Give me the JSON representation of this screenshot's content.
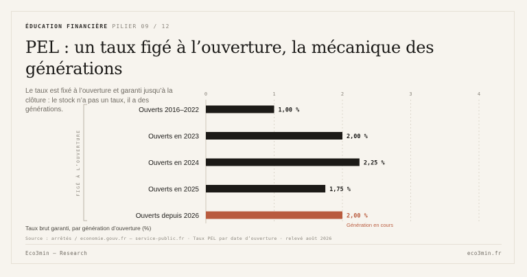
{
  "header": {
    "kicker": "ÉDUCATION FINANCIÈRE",
    "pillar": "PILIER 09 / 12",
    "title": "PEL : un taux figé à l’ouverture, la mécanique des générations",
    "subtitle": "Le taux est fixé à l’ouverture et garanti jusqu’à la clôture : le stock n’a pas un taux, il a des générations."
  },
  "chart_data": {
    "type": "bar",
    "orientation": "horizontal",
    "categories": [
      "Ouverts 2016–2022",
      "Ouverts en 2023",
      "Ouverts en 2024",
      "Ouverts en 2025",
      "Ouverts depuis 2026"
    ],
    "values": [
      1.0,
      2.0,
      2.25,
      1.75,
      2.0
    ],
    "data_labels": [
      "1,00 %",
      "2,00 %",
      "2,25 %",
      "1,75 %",
      "2,00 %"
    ],
    "highlight_index": 4,
    "highlight_note": "Génération en cours",
    "xlim": [
      0,
      4
    ],
    "xticks": [
      0,
      1,
      2,
      3,
      4
    ],
    "y_axis_label": "FIGÉ À L’OUVERTURE",
    "grid": true,
    "colors": {
      "bar": "#1c1a17",
      "highlight": "#b95b3e"
    }
  },
  "caption": "Taux brut garanti, par génération d’ouverture (%)",
  "source": "Source : arrêtés / economie.gouv.fr — service-public.fr · Taux PEL par date d’ouverture · relevé août 2026",
  "footer": {
    "brand": "Eco3min — Research",
    "site": "eco3min.fr"
  }
}
